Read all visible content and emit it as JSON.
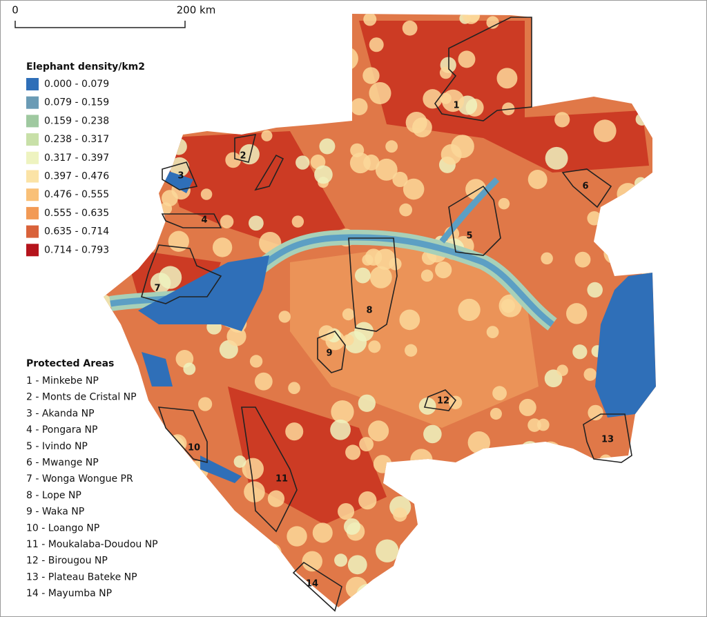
{
  "scale_bar": {
    "start_label": "0",
    "end_label": "200 km"
  },
  "legend": {
    "title": "Elephant density/km2",
    "entries": [
      {
        "label": "0.000 - 0.079",
        "color": "#2f6fb8"
      },
      {
        "label": "0.079 - 0.159",
        "color": "#6a9bb5"
      },
      {
        "label": "0.159 - 0.238",
        "color": "#9fc9a0"
      },
      {
        "label": "0.238 - 0.317",
        "color": "#c8e0a8"
      },
      {
        "label": "0.317 - 0.397",
        "color": "#eef3c0"
      },
      {
        "label": "0.397 - 0.476",
        "color": "#fbe3a6"
      },
      {
        "label": "0.476 - 0.555",
        "color": "#f9c077"
      },
      {
        "label": "0.555 - 0.635",
        "color": "#f29a55"
      },
      {
        "label": "0.635 - 0.714",
        "color": "#d9623a"
      },
      {
        "label": "0.714 - 0.793",
        "color": "#b5141c"
      }
    ]
  },
  "protected_areas": {
    "title": "Protected Areas",
    "items": [
      "1 - Minkebe NP",
      "2 - Monts de Cristal NP",
      "3 - Akanda NP",
      "4 - Pongara NP",
      "5 - Ivindo NP",
      "6 - Mwange NP",
      "7 - Wonga Wongue PR",
      "8 - Lope NP",
      "9 - Waka NP",
      "10 - Loango NP",
      "11 - Moukalaba-Doudou NP",
      "12 - Birougou NP",
      "13 - Plateau Bateke NP",
      "14 - Mayumba NP"
    ]
  },
  "map_labels": [
    "1",
    "2",
    "3",
    "4",
    "5",
    "6",
    "7",
    "8",
    "9",
    "10",
    "11",
    "12",
    "13",
    "14"
  ]
}
